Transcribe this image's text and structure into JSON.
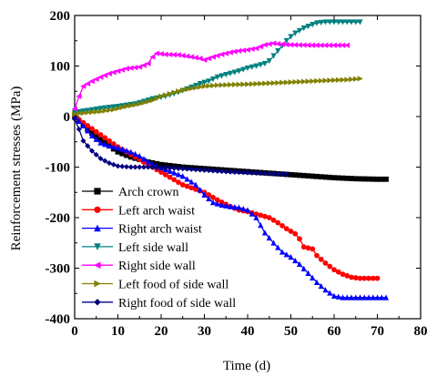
{
  "chart_data": {
    "type": "line",
    "xlabel": "Time (d)",
    "ylabel": "Reinforcement stresses (MPa)",
    "xlim": [
      0,
      80
    ],
    "ylim": [
      -400,
      200
    ],
    "xticks": [
      0,
      10,
      20,
      30,
      40,
      50,
      60,
      70,
      80
    ],
    "yticks": [
      -400,
      -300,
      -200,
      -100,
      0,
      100,
      200
    ],
    "grid": false,
    "legend_position": "lower-left",
    "series": [
      {
        "name": "Arch crown",
        "color": "#000000",
        "marker": "square",
        "points": [
          [
            0,
            0
          ],
          [
            2,
            -18
          ],
          [
            5,
            -40
          ],
          [
            8,
            -58
          ],
          [
            10,
            -70
          ],
          [
            13,
            -80
          ],
          [
            17,
            -90
          ],
          [
            20,
            -95
          ],
          [
            25,
            -100
          ],
          [
            30,
            -103
          ],
          [
            35,
            -106
          ],
          [
            40,
            -109
          ],
          [
            45,
            -112
          ],
          [
            50,
            -115
          ],
          [
            55,
            -118
          ],
          [
            60,
            -121
          ],
          [
            65,
            -123
          ],
          [
            70,
            -124
          ],
          [
            72,
            -124
          ]
        ]
      },
      {
        "name": "Left arch waist",
        "color": "#ff0000",
        "marker": "circle",
        "points": [
          [
            0,
            0
          ],
          [
            2,
            -12
          ],
          [
            5,
            -30
          ],
          [
            8,
            -48
          ],
          [
            10,
            -60
          ],
          [
            13,
            -75
          ],
          [
            17,
            -95
          ],
          [
            20,
            -110
          ],
          [
            25,
            -135
          ],
          [
            30,
            -150
          ],
          [
            33,
            -165
          ],
          [
            36,
            -178
          ],
          [
            38,
            -185
          ],
          [
            40,
            -188
          ],
          [
            42,
            -193
          ],
          [
            45,
            -200
          ],
          [
            47,
            -210
          ],
          [
            49,
            -222
          ],
          [
            51,
            -232
          ],
          [
            52,
            -242
          ],
          [
            53,
            -258
          ],
          [
            55,
            -262
          ],
          [
            56,
            -275
          ],
          [
            58,
            -290
          ],
          [
            60,
            -303
          ],
          [
            62,
            -312
          ],
          [
            64,
            -318
          ],
          [
            66,
            -320
          ],
          [
            68,
            -320
          ],
          [
            70,
            -320
          ]
        ]
      },
      {
        "name": "Right arch waist",
        "color": "#0000ff",
        "marker": "triangle-up",
        "points": [
          [
            0,
            0
          ],
          [
            2,
            -18
          ],
          [
            4,
            -38
          ],
          [
            6,
            -52
          ],
          [
            8,
            -58
          ],
          [
            10,
            -62
          ],
          [
            13,
            -70
          ],
          [
            15,
            -78
          ],
          [
            18,
            -95
          ],
          [
            22,
            -108
          ],
          [
            25,
            -118
          ],
          [
            28,
            -135
          ],
          [
            30,
            -155
          ],
          [
            32,
            -170
          ],
          [
            34,
            -175
          ],
          [
            36,
            -178
          ],
          [
            38,
            -180
          ],
          [
            40,
            -185
          ],
          [
            42,
            -200
          ],
          [
            44,
            -230
          ],
          [
            46,
            -250
          ],
          [
            48,
            -268
          ],
          [
            50,
            -278
          ],
          [
            52,
            -292
          ],
          [
            54,
            -310
          ],
          [
            56,
            -328
          ],
          [
            58,
            -343
          ],
          [
            60,
            -355
          ],
          [
            62,
            -358
          ],
          [
            66,
            -358
          ],
          [
            70,
            -358
          ],
          [
            72,
            -358
          ]
        ]
      },
      {
        "name": "Left side wall",
        "color": "#008080",
        "marker": "triangle-down",
        "points": [
          [
            0,
            8
          ],
          [
            3,
            12
          ],
          [
            6,
            16
          ],
          [
            10,
            20
          ],
          [
            14,
            25
          ],
          [
            18,
            35
          ],
          [
            21,
            40
          ],
          [
            24,
            48
          ],
          [
            27,
            58
          ],
          [
            29,
            65
          ],
          [
            31,
            70
          ],
          [
            33,
            78
          ],
          [
            35,
            83
          ],
          [
            38,
            90
          ],
          [
            40,
            96
          ],
          [
            42,
            100
          ],
          [
            44,
            105
          ],
          [
            45,
            110
          ],
          [
            46,
            120
          ],
          [
            47,
            130
          ],
          [
            48,
            140
          ],
          [
            49,
            150
          ],
          [
            50,
            158
          ],
          [
            51,
            165
          ],
          [
            53,
            175
          ],
          [
            55,
            182
          ],
          [
            56,
            185
          ],
          [
            58,
            187
          ],
          [
            60,
            187
          ],
          [
            63,
            187
          ],
          [
            66,
            187
          ]
        ]
      },
      {
        "name": "Right side wall",
        "color": "#ff00ff",
        "marker": "triangle-left",
        "points": [
          [
            0,
            15
          ],
          [
            1,
            40
          ],
          [
            2,
            60
          ],
          [
            4,
            70
          ],
          [
            6,
            78
          ],
          [
            8,
            85
          ],
          [
            10,
            90
          ],
          [
            12,
            95
          ],
          [
            15,
            98
          ],
          [
            17,
            105
          ],
          [
            18,
            118
          ],
          [
            19,
            125
          ],
          [
            21,
            123
          ],
          [
            24,
            122
          ],
          [
            27,
            118
          ],
          [
            29,
            115
          ],
          [
            30,
            112
          ],
          [
            32,
            118
          ],
          [
            34,
            123
          ],
          [
            36,
            127
          ],
          [
            38,
            130
          ],
          [
            40,
            132
          ],
          [
            42,
            135
          ],
          [
            44,
            142
          ],
          [
            46,
            145
          ],
          [
            48,
            143
          ],
          [
            50,
            142
          ],
          [
            55,
            141
          ],
          [
            60,
            141
          ],
          [
            63,
            141
          ]
        ]
      },
      {
        "name": "Left food of side wall",
        "color": "#808000",
        "marker": "triangle-right",
        "points": [
          [
            0,
            5
          ],
          [
            3,
            8
          ],
          [
            6,
            10
          ],
          [
            9,
            14
          ],
          [
            12,
            20
          ],
          [
            15,
            25
          ],
          [
            18,
            32
          ],
          [
            20,
            40
          ],
          [
            22,
            45
          ],
          [
            24,
            50
          ],
          [
            26,
            54
          ],
          [
            28,
            57
          ],
          [
            30,
            60
          ],
          [
            33,
            62
          ],
          [
            36,
            63
          ],
          [
            40,
            64
          ],
          [
            45,
            66
          ],
          [
            50,
            68
          ],
          [
            55,
            70
          ],
          [
            60,
            72
          ],
          [
            63,
            73
          ],
          [
            66,
            75
          ]
        ]
      },
      {
        "name": "Right food of side wall",
        "color": "#000080",
        "marker": "diamond",
        "points": [
          [
            0,
            -5
          ],
          [
            1,
            -25
          ],
          [
            2,
            -48
          ],
          [
            4,
            -68
          ],
          [
            6,
            -83
          ],
          [
            8,
            -92
          ],
          [
            10,
            -98
          ],
          [
            13,
            -100
          ],
          [
            17,
            -100
          ],
          [
            20,
            -101
          ],
          [
            25,
            -103
          ],
          [
            30,
            -106
          ],
          [
            35,
            -109
          ],
          [
            40,
            -111
          ],
          [
            45,
            -113
          ],
          [
            49,
            -114
          ]
        ]
      }
    ]
  }
}
